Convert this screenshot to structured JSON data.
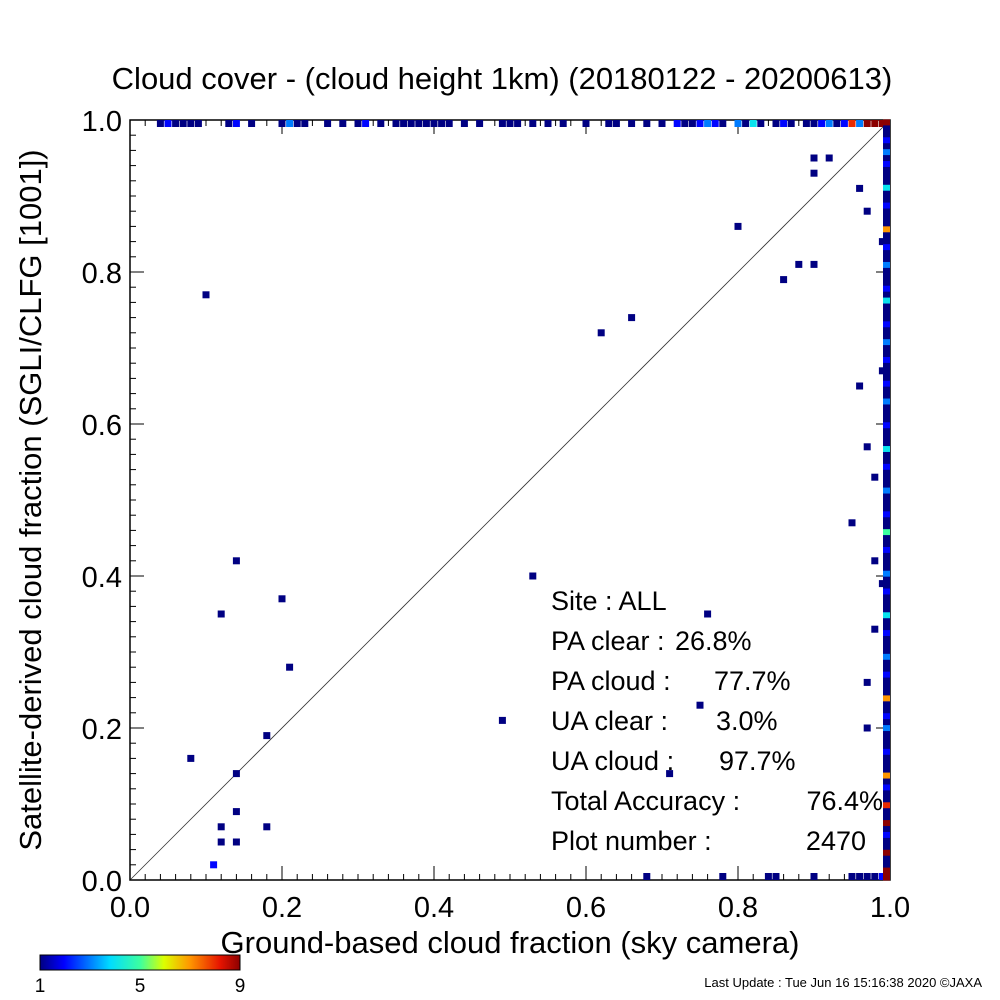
{
  "chart_data": {
    "type": "scatter",
    "title": "Cloud cover - (cloud height 1km)  (20180122 - 20200613)",
    "xlabel": "Ground-based cloud fraction (sky camera)",
    "ylabel": "Satellite-derived cloud fraction (SGLI/CLFG [1001])",
    "xlim": [
      0.0,
      1.0
    ],
    "ylim": [
      0.0,
      1.0
    ],
    "x_ticks": [
      "0.0",
      "0.2",
      "0.4",
      "0.6",
      "0.8",
      "1.0"
    ],
    "y_ticks": [
      "0.0",
      "0.2",
      "0.4",
      "0.6",
      "0.8",
      "1.0"
    ],
    "diagonal_line": true,
    "colorbar": {
      "ticks": [
        "1",
        "5",
        "9"
      ],
      "min": 1,
      "max": 9
    },
    "stats": [
      {
        "label": "Site : ALL",
        "value": ""
      },
      {
        "label": "PA clear :",
        "value": "26.8%"
      },
      {
        "label": "PA cloud :",
        "value": "77.7%"
      },
      {
        "label": "UA clear :",
        "value": "3.0%"
      },
      {
        "label": "UA cloud :",
        "value": "97.7%"
      },
      {
        "label": "Total Accuracy :",
        "value": "76.4%"
      },
      {
        "label": "Plot number :",
        "value": "2470"
      }
    ],
    "points": [
      {
        "x": 0.1,
        "y": 0.77,
        "c": 1
      },
      {
        "x": 0.14,
        "y": 0.42,
        "c": 1
      },
      {
        "x": 0.12,
        "y": 0.35,
        "c": 1
      },
      {
        "x": 0.2,
        "y": 0.37,
        "c": 1
      },
      {
        "x": 0.21,
        "y": 0.28,
        "c": 1
      },
      {
        "x": 0.18,
        "y": 0.19,
        "c": 1
      },
      {
        "x": 0.08,
        "y": 0.16,
        "c": 1
      },
      {
        "x": 0.14,
        "y": 0.14,
        "c": 1
      },
      {
        "x": 0.14,
        "y": 0.09,
        "c": 1
      },
      {
        "x": 0.12,
        "y": 0.07,
        "c": 1
      },
      {
        "x": 0.18,
        "y": 0.07,
        "c": 1
      },
      {
        "x": 0.12,
        "y": 0.05,
        "c": 1
      },
      {
        "x": 0.14,
        "y": 0.05,
        "c": 1
      },
      {
        "x": 0.11,
        "y": 0.02,
        "c": 2
      },
      {
        "x": 0.53,
        "y": 0.4,
        "c": 1
      },
      {
        "x": 0.49,
        "y": 0.21,
        "c": 1
      },
      {
        "x": 0.62,
        "y": 0.72,
        "c": 1
      },
      {
        "x": 0.66,
        "y": 0.74,
        "c": 1
      },
      {
        "x": 0.75,
        "y": 0.23,
        "c": 1
      },
      {
        "x": 0.76,
        "y": 0.35,
        "c": 1
      },
      {
        "x": 0.71,
        "y": 0.14,
        "c": 1
      },
      {
        "x": 0.8,
        "y": 0.86,
        "c": 1
      },
      {
        "x": 0.86,
        "y": 0.79,
        "c": 1
      },
      {
        "x": 0.88,
        "y": 0.81,
        "c": 1
      },
      {
        "x": 0.9,
        "y": 0.81,
        "c": 1
      },
      {
        "x": 0.9,
        "y": 0.95,
        "c": 1
      },
      {
        "x": 0.9,
        "y": 0.93,
        "c": 1
      },
      {
        "x": 0.92,
        "y": 0.95,
        "c": 1
      },
      {
        "x": 0.96,
        "y": 0.91,
        "c": 1
      },
      {
        "x": 0.97,
        "y": 0.88,
        "c": 1
      },
      {
        "x": 0.99,
        "y": 0.84,
        "c": 1
      },
      {
        "x": 0.96,
        "y": 0.65,
        "c": 1
      },
      {
        "x": 0.99,
        "y": 0.67,
        "c": 1
      },
      {
        "x": 0.97,
        "y": 0.57,
        "c": 1
      },
      {
        "x": 0.98,
        "y": 0.53,
        "c": 1
      },
      {
        "x": 0.95,
        "y": 0.47,
        "c": 1
      },
      {
        "x": 0.98,
        "y": 0.42,
        "c": 1
      },
      {
        "x": 0.99,
        "y": 0.39,
        "c": 1
      },
      {
        "x": 0.98,
        "y": 0.33,
        "c": 1
      },
      {
        "x": 0.97,
        "y": 0.26,
        "c": 1
      },
      {
        "x": 0.97,
        "y": 0.2,
        "c": 1
      },
      {
        "x": 0.68,
        "y": 0.0,
        "c": 1
      },
      {
        "x": 0.78,
        "y": 0.0,
        "c": 1
      },
      {
        "x": 0.84,
        "y": 0.0,
        "c": 1
      },
      {
        "x": 0.85,
        "y": 0.0,
        "c": 1
      },
      {
        "x": 0.9,
        "y": 0.0,
        "c": 1
      },
      {
        "x": 0.95,
        "y": 0.0,
        "c": 1
      },
      {
        "x": 0.96,
        "y": 0.0,
        "c": 1
      },
      {
        "x": 0.97,
        "y": 0.0,
        "c": 1
      },
      {
        "x": 0.98,
        "y": 0.0,
        "c": 1
      },
      {
        "x": 0.99,
        "y": 0.0,
        "c": 2
      },
      {
        "x": 0.04,
        "y": 1.0,
        "c": 1
      },
      {
        "x": 0.05,
        "y": 1.0,
        "c": 2
      },
      {
        "x": 0.06,
        "y": 1.0,
        "c": 1
      },
      {
        "x": 0.07,
        "y": 1.0,
        "c": 1
      },
      {
        "x": 0.08,
        "y": 1.0,
        "c": 1
      },
      {
        "x": 0.09,
        "y": 1.0,
        "c": 1
      },
      {
        "x": 0.13,
        "y": 1.0,
        "c": 1
      },
      {
        "x": 0.14,
        "y": 1.0,
        "c": 2
      },
      {
        "x": 0.16,
        "y": 1.0,
        "c": 1
      },
      {
        "x": 0.2,
        "y": 1.0,
        "c": 1
      },
      {
        "x": 0.21,
        "y": 1.0,
        "c": 3
      },
      {
        "x": 0.22,
        "y": 1.0,
        "c": 1
      },
      {
        "x": 0.23,
        "y": 1.0,
        "c": 1
      },
      {
        "x": 0.26,
        "y": 1.0,
        "c": 1
      },
      {
        "x": 0.28,
        "y": 1.0,
        "c": 1
      },
      {
        "x": 0.3,
        "y": 1.0,
        "c": 1
      },
      {
        "x": 0.31,
        "y": 1.0,
        "c": 2
      },
      {
        "x": 0.33,
        "y": 1.0,
        "c": 1
      },
      {
        "x": 0.35,
        "y": 1.0,
        "c": 1
      },
      {
        "x": 0.36,
        "y": 1.0,
        "c": 1
      },
      {
        "x": 0.37,
        "y": 1.0,
        "c": 1
      },
      {
        "x": 0.38,
        "y": 1.0,
        "c": 1
      },
      {
        "x": 0.39,
        "y": 1.0,
        "c": 1
      },
      {
        "x": 0.4,
        "y": 1.0,
        "c": 1
      },
      {
        "x": 0.41,
        "y": 1.0,
        "c": 1
      },
      {
        "x": 0.42,
        "y": 1.0,
        "c": 1
      },
      {
        "x": 0.44,
        "y": 1.0,
        "c": 1
      },
      {
        "x": 0.46,
        "y": 1.0,
        "c": 1
      },
      {
        "x": 0.49,
        "y": 1.0,
        "c": 1
      },
      {
        "x": 0.5,
        "y": 1.0,
        "c": 1
      },
      {
        "x": 0.51,
        "y": 1.0,
        "c": 1
      },
      {
        "x": 0.53,
        "y": 1.0,
        "c": 1
      },
      {
        "x": 0.55,
        "y": 1.0,
        "c": 1
      },
      {
        "x": 0.57,
        "y": 1.0,
        "c": 1
      },
      {
        "x": 0.6,
        "y": 1.0,
        "c": 1
      },
      {
        "x": 0.63,
        "y": 1.0,
        "c": 1
      },
      {
        "x": 0.64,
        "y": 1.0,
        "c": 1
      },
      {
        "x": 0.66,
        "y": 1.0,
        "c": 1
      },
      {
        "x": 0.68,
        "y": 1.0,
        "c": 1
      },
      {
        "x": 0.7,
        "y": 1.0,
        "c": 1
      },
      {
        "x": 0.72,
        "y": 1.0,
        "c": 2
      },
      {
        "x": 0.73,
        "y": 1.0,
        "c": 1
      },
      {
        "x": 0.74,
        "y": 1.0,
        "c": 1
      },
      {
        "x": 0.75,
        "y": 1.0,
        "c": 2
      },
      {
        "x": 0.76,
        "y": 1.0,
        "c": 3
      },
      {
        "x": 0.77,
        "y": 1.0,
        "c": 2
      },
      {
        "x": 0.78,
        "y": 1.0,
        "c": 1
      },
      {
        "x": 0.8,
        "y": 1.0,
        "c": 3
      },
      {
        "x": 0.81,
        "y": 1.0,
        "c": 1
      },
      {
        "x": 0.82,
        "y": 1.0,
        "c": 4
      },
      {
        "x": 0.83,
        "y": 1.0,
        "c": 1
      },
      {
        "x": 0.85,
        "y": 1.0,
        "c": 1
      },
      {
        "x": 0.86,
        "y": 1.0,
        "c": 2
      },
      {
        "x": 0.87,
        "y": 1.0,
        "c": 1
      },
      {
        "x": 0.89,
        "y": 1.0,
        "c": 1
      },
      {
        "x": 0.9,
        "y": 1.0,
        "c": 1
      },
      {
        "x": 0.91,
        "y": 1.0,
        "c": 2
      },
      {
        "x": 0.92,
        "y": 1.0,
        "c": 3
      },
      {
        "x": 0.93,
        "y": 1.0,
        "c": 1
      },
      {
        "x": 0.94,
        "y": 1.0,
        "c": 2
      },
      {
        "x": 0.95,
        "y": 1.0,
        "c": 8
      },
      {
        "x": 0.96,
        "y": 1.0,
        "c": 3
      },
      {
        "x": 0.97,
        "y": 1.0,
        "c": 9
      },
      {
        "x": 0.98,
        "y": 1.0,
        "c": 9
      },
      {
        "x": 0.99,
        "y": 1.0,
        "c": 9
      },
      {
        "x": 1.0,
        "y": 1.0,
        "c": 9
      }
    ],
    "right_column": [
      9,
      1,
      1,
      2,
      1,
      3,
      1,
      2,
      1,
      1,
      1,
      4,
      1,
      1,
      2,
      1,
      1,
      1,
      7,
      1,
      1,
      2,
      1,
      1,
      3,
      1,
      1,
      1,
      2,
      1,
      4,
      1,
      1,
      1,
      2,
      1,
      1,
      3,
      1,
      1,
      2,
      1,
      1,
      1,
      2,
      1,
      1,
      3,
      1,
      1,
      1,
      2,
      1,
      1,
      1,
      4,
      1,
      1,
      2,
      1,
      1,
      1,
      3,
      1,
      1,
      1,
      2,
      1,
      1,
      5,
      1,
      1,
      2,
      1,
      1,
      1,
      3,
      1,
      1,
      2,
      1,
      1,
      1,
      4,
      1,
      1,
      2,
      1,
      1,
      1,
      3,
      1,
      1,
      2,
      1,
      1,
      1,
      7,
      1,
      1,
      2,
      1,
      3,
      1,
      1,
      1,
      2,
      1,
      1,
      1,
      7,
      1,
      2,
      1,
      1,
      8,
      1,
      1,
      9,
      1,
      2,
      1,
      1,
      9,
      1,
      1,
      9,
      9
    ],
    "right_column_x": 1.0
  },
  "footer": {
    "text": "Last Update : Tue Jun 16 15:16:38 2020  ©JAXA"
  }
}
